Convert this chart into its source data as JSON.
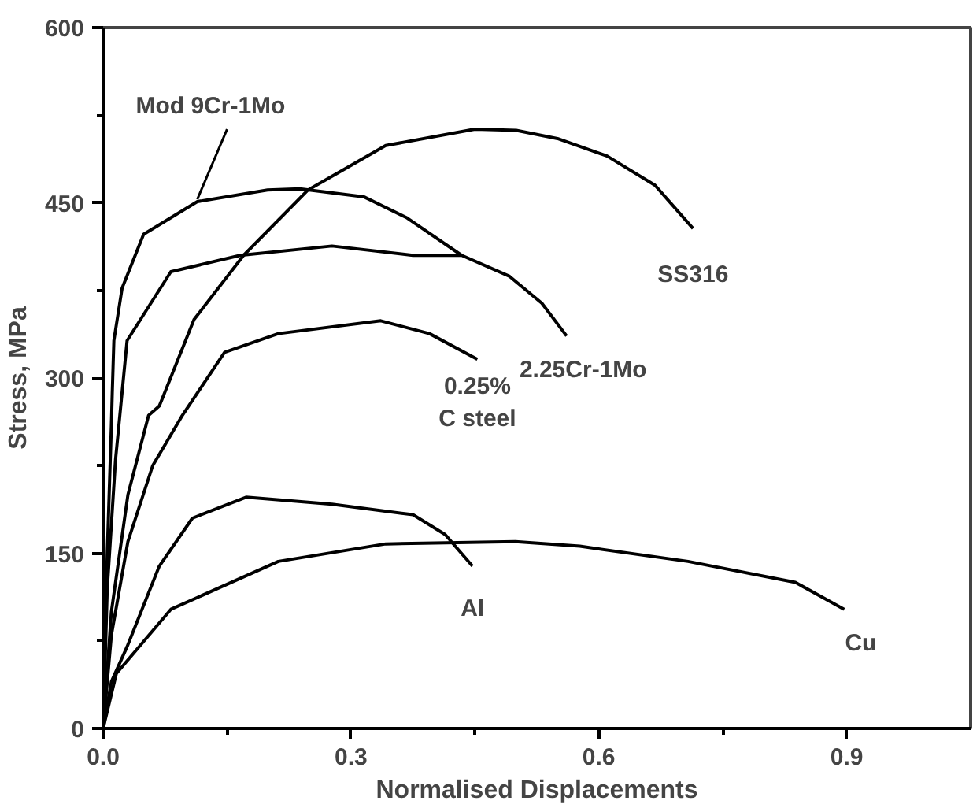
{
  "chart_data": {
    "type": "line",
    "xlabel": "Normalised Displacements",
    "ylabel": "Stress, MPa",
    "xlim": [
      0,
      1.05
    ],
    "ylim": [
      0,
      600
    ],
    "xticks": [
      {
        "value": 0,
        "label": "0.0"
      },
      {
        "value": 0.15,
        "label": null
      },
      {
        "value": 0.3,
        "label": "0.3"
      },
      {
        "value": 0.45,
        "label": null
      },
      {
        "value": 0.6,
        "label": "0.6"
      },
      {
        "value": 0.75,
        "label": null
      },
      {
        "value": 0.9,
        "label": "0.9"
      }
    ],
    "yticks": [
      0,
      {
        "value": 75,
        "label": null
      },
      150,
      {
        "value": 225,
        "label": null
      },
      300,
      {
        "value": 375,
        "label": null
      },
      450,
      {
        "value": 525,
        "label": null
      },
      600
    ],
    "line_style": "solid",
    "series": [
      {
        "name": "Mod 9Cr-1Mo",
        "color": "#000000",
        "x": [
          0,
          0.005,
          0.01,
          0.011,
          0.013,
          0.023,
          0.049,
          0.114,
          0.199,
          0.238,
          0.316,
          0.368,
          0.434
        ],
        "values": [
          0,
          150,
          260,
          286,
          332,
          377,
          423,
          451,
          461,
          462,
          455,
          437,
          405
        ]
      },
      {
        "name": "SS316",
        "color": "#000000",
        "x": [
          0,
          0.01,
          0.03,
          0.055,
          0.068,
          0.11,
          0.17,
          0.248,
          0.342,
          0.45,
          0.5,
          0.55,
          0.61,
          0.668,
          0.714
        ],
        "values": [
          0,
          100,
          200,
          268,
          276,
          350,
          405,
          461,
          499,
          513,
          512,
          505,
          490,
          465,
          428
        ]
      },
      {
        "name": "2.25Cr-1Mo",
        "color": "#000000",
        "x": [
          0,
          0.005,
          0.015,
          0.029,
          0.082,
          0.166,
          0.277,
          0.375,
          0.434,
          0.492,
          0.531,
          0.561
        ],
        "values": [
          0,
          120,
          230,
          332,
          391,
          405,
          413,
          405,
          405,
          387,
          364,
          336
        ]
      },
      {
        "name": "0.25%\nC steel",
        "color": "#000000",
        "x": [
          0,
          0.01,
          0.03,
          0.06,
          0.095,
          0.147,
          0.212,
          0.336,
          0.395,
          0.453
        ],
        "values": [
          0,
          80,
          160,
          225,
          267,
          322,
          338,
          349,
          338,
          316
        ]
      },
      {
        "name": "Al",
        "color": "#000000",
        "x": [
          0,
          0.01,
          0.029,
          0.068,
          0.108,
          0.173,
          0.277,
          0.375,
          0.414,
          0.447
        ],
        "values": [
          0,
          40,
          70,
          139,
          180,
          198,
          192,
          183,
          166,
          139
        ]
      },
      {
        "name": "Cu",
        "color": "#000000",
        "x": [
          0,
          0.016,
          0.082,
          0.212,
          0.342,
          0.499,
          0.577,
          0.708,
          0.838,
          0.897
        ],
        "values": [
          0,
          47,
          102,
          143,
          158,
          160,
          156,
          143,
          125,
          102
        ]
      }
    ]
  }
}
